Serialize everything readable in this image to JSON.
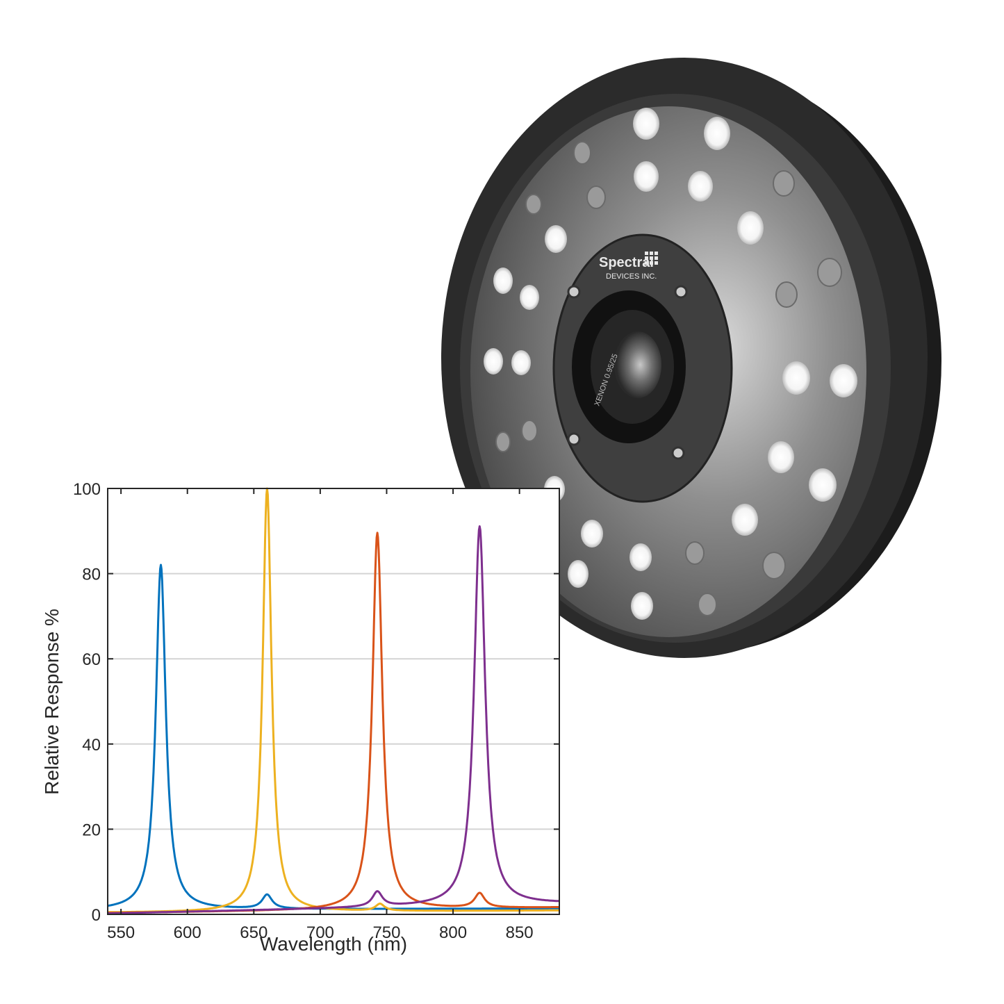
{
  "product_photo": {
    "logo_line1": "Spectral",
    "logo_line2": "DEVICES INC.",
    "lens_text": "XENON 0.95/25"
  },
  "chart_data": {
    "type": "line",
    "title": "",
    "xlabel": "Wavelength (nm)",
    "ylabel": "Relative Response %",
    "xlim": [
      540,
      880
    ],
    "ylim": [
      0,
      100
    ],
    "xticks": [
      550,
      600,
      650,
      700,
      750,
      800,
      850
    ],
    "yticks": [
      0,
      20,
      40,
      60,
      80,
      100
    ],
    "grid": "horizontal",
    "series": [
      {
        "color": "#0072BD",
        "peaks": [
          [
            580,
            81,
            9
          ],
          [
            660,
            3.3,
            9
          ]
        ],
        "baseline": [
          [
            540,
            1.0
          ],
          [
            880,
            1.4
          ]
        ]
      },
      {
        "color": "#EDB120",
        "peaks": [
          [
            660,
            99.5,
            8
          ],
          [
            745,
            1.6,
            8
          ]
        ],
        "baseline": [
          [
            540,
            0.4
          ],
          [
            880,
            0.9
          ]
        ]
      },
      {
        "color": "#D95319",
        "peaks": [
          [
            743,
            88.5,
            9
          ],
          [
            820,
            3.4,
            9
          ]
        ],
        "baseline": [
          [
            540,
            0.3
          ],
          [
            880,
            1.6
          ]
        ]
      },
      {
        "color": "#7E2F8E",
        "peaks": [
          [
            820,
            89,
            10
          ],
          [
            743,
            3.5,
            9
          ]
        ],
        "baseline": [
          [
            540,
            0.2
          ],
          [
            880,
            2.5
          ]
        ]
      }
    ]
  }
}
